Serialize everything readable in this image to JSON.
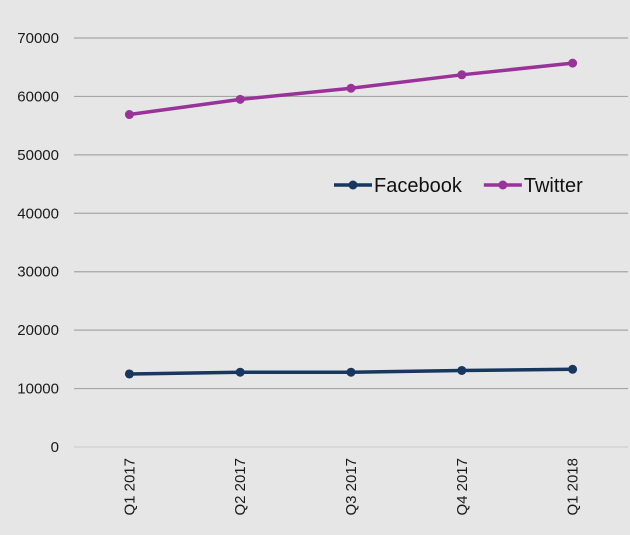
{
  "chart_data": {
    "type": "line",
    "title": "",
    "xlabel": "",
    "ylabel": "",
    "categories": [
      "Q1 2017",
      "Q2 2017",
      "Q3 2017",
      "Q4 2017",
      "Q1 2018"
    ],
    "series": [
      {
        "name": "Facebook",
        "color": "#17375e",
        "values": [
          12500,
          12800,
          12800,
          13100,
          13300
        ]
      },
      {
        "name": "Twitter",
        "color": "#993399",
        "values": [
          56900,
          59500,
          61400,
          63700,
          65700
        ]
      }
    ],
    "ylim": [
      0,
      70000
    ],
    "yticks": [
      0,
      10000,
      20000,
      30000,
      40000,
      50000,
      60000,
      70000
    ],
    "grid": true,
    "legend_position": "center-right"
  }
}
